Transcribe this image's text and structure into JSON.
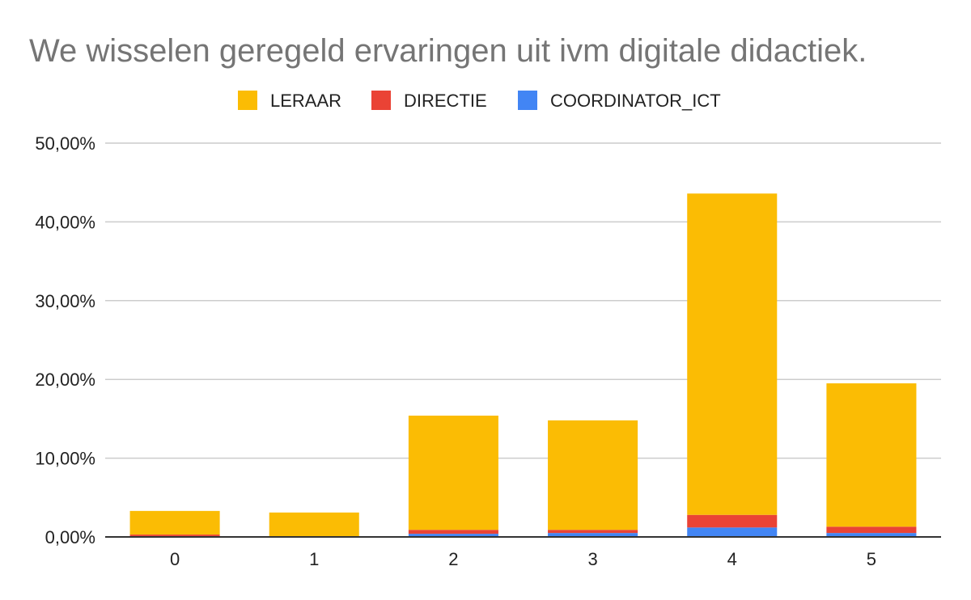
{
  "chart_data": {
    "type": "bar",
    "stacked": true,
    "title": "We wisselen geregeld ervaringen uit ivm digitale didactiek.",
    "xlabel": "",
    "ylabel": "",
    "categories": [
      "0",
      "1",
      "2",
      "3",
      "4",
      "5"
    ],
    "series": [
      {
        "name": "COORDINATOR_ICT",
        "color": "#4285f4",
        "values": [
          0.1,
          0.0,
          0.4,
          0.5,
          1.2,
          0.5
        ]
      },
      {
        "name": "DIRECTIE",
        "color": "#ea4335",
        "values": [
          0.2,
          0.1,
          0.5,
          0.4,
          1.6,
          0.8
        ]
      },
      {
        "name": "LERAAR",
        "color": "#fbbc04",
        "values": [
          3.0,
          3.0,
          14.5,
          13.9,
          40.8,
          18.2
        ]
      }
    ],
    "legend_order": [
      "LERAAR",
      "DIRECTIE",
      "COORDINATOR_ICT"
    ],
    "legend_position": "top",
    "ylim": [
      0,
      50
    ],
    "yticks": [
      0,
      10,
      20,
      30,
      40,
      50
    ],
    "ytick_labels": [
      "0,00%",
      "10,00%",
      "20,00%",
      "30,00%",
      "40,00%",
      "50,00%"
    ],
    "grid": true
  }
}
